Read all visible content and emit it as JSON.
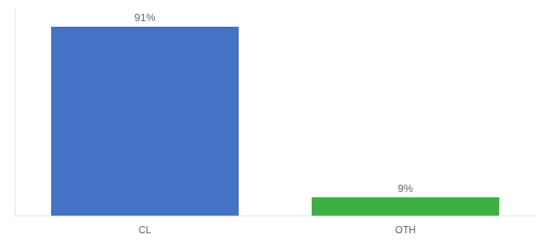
{
  "chart_data": {
    "type": "bar",
    "categories": [
      "CL",
      "OTH"
    ],
    "values": [
      91,
      9
    ],
    "colors": [
      "#4472c4",
      "#3cb043"
    ],
    "value_labels": [
      "91%",
      "9%"
    ],
    "data_labels": true,
    "ylim": [
      0,
      100
    ],
    "grid": false,
    "tick_labels": "x"
  }
}
